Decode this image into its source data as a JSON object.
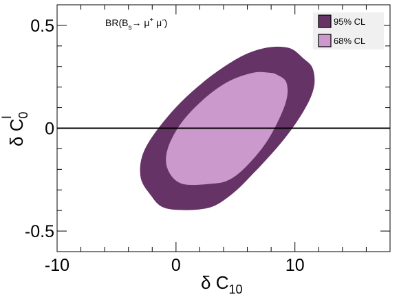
{
  "chart_data": {
    "type": "area",
    "title": "",
    "annotation": {
      "base": "BR(B",
      "sub": "s",
      "arrow": "→ μ",
      "sup1": "+",
      "mid": " μ",
      "sup2": "-",
      "end": ")"
    },
    "xlabel": {
      "main": "δ C",
      "sub": "10"
    },
    "ylabel": {
      "main": "δ C",
      "sub": "0",
      "sup": "l"
    },
    "xlim": [
      -10.0,
      18.0
    ],
    "ylim": [
      -0.6,
      0.6
    ],
    "xticks": [
      -10,
      0,
      10
    ],
    "yticks": [
      0.5,
      0,
      -0.5
    ],
    "xtick_labels": [
      "-10",
      "0",
      "10"
    ],
    "ytick_labels": [
      "0.5",
      "0",
      "-0.5"
    ],
    "grid": false,
    "legend_position": "top-right",
    "zero_line": 0,
    "series": [
      {
        "name": "95% CL",
        "color": "#663366",
        "outline": [
          [
            10.7,
            0.34
          ],
          [
            11.5,
            0.29
          ],
          [
            11.6,
            0.2
          ],
          [
            10.8,
            0.09
          ],
          [
            9.0,
            -0.06
          ],
          [
            6.5,
            -0.22
          ],
          [
            4.5,
            -0.33
          ],
          [
            2.5,
            -0.39
          ],
          [
            -0.8,
            -0.39
          ],
          [
            -2.2,
            -0.32
          ],
          [
            -3.0,
            -0.23
          ],
          [
            -2.6,
            -0.1
          ],
          [
            -0.5,
            0.07
          ],
          [
            2.2,
            0.22
          ],
          [
            5.2,
            0.34
          ],
          [
            7.5,
            0.39
          ],
          [
            9.5,
            0.39
          ]
        ]
      },
      {
        "name": "68% CL",
        "color": "#cc99cc",
        "outline": [
          [
            8.5,
            0.26
          ],
          [
            9.3,
            0.22
          ],
          [
            9.2,
            0.12
          ],
          [
            7.8,
            -0.05
          ],
          [
            6.0,
            -0.18
          ],
          [
            4.5,
            -0.25
          ],
          [
            3.0,
            -0.27
          ],
          [
            0.5,
            -0.27
          ],
          [
            -0.7,
            -0.2
          ],
          [
            -0.7,
            -0.1
          ],
          [
            0.5,
            0.03
          ],
          [
            2.5,
            0.15
          ],
          [
            4.5,
            0.23
          ],
          [
            6.5,
            0.27
          ],
          [
            7.8,
            0.27
          ]
        ]
      }
    ]
  }
}
